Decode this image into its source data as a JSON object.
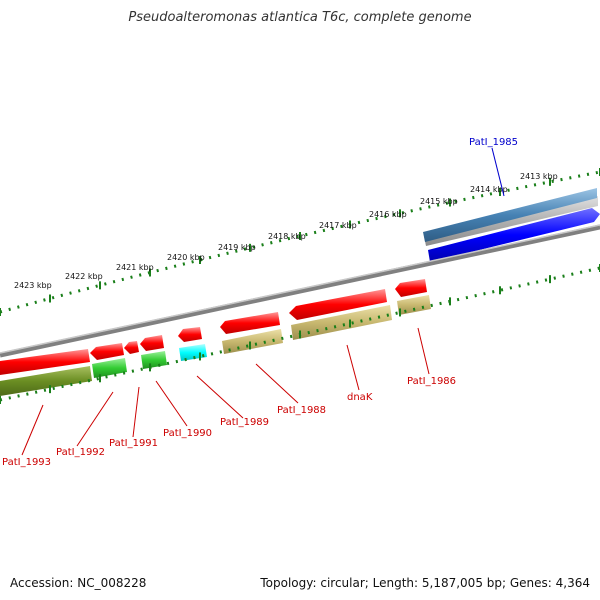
{
  "title": "Pseudoalteromonas atlantica T6c, complete genome",
  "accession": "Accession: NC_008228",
  "summary": "Topology: circular; Length: 5,187,005 bp; Genes: 4,364",
  "colors": {
    "cds": "#ff0000",
    "olive_feature": "#c8b870",
    "dark_olive_feature": "#6b8e23",
    "green_feature": "#33cc33",
    "cyan_feature": "#00ffff",
    "blue_feature": "#0000ff",
    "steelblue_feature": "#4682b4",
    "tick": "#1a7f1a",
    "backbone": "#808080",
    "label_red": "#cc0000",
    "label_blue": "#0000cc"
  },
  "scale_labels": [
    "2413 kbp",
    "2414 kbp",
    "2415 kbp",
    "2416 kbp",
    "2417 kbp",
    "2418 kbp",
    "2419 kbp",
    "2420 kbp",
    "2421 kbp",
    "2422 kbp",
    "2423 kbp"
  ],
  "gene_labels": [
    {
      "id": "patl-1985",
      "text": "PatI_1985",
      "color": "blue"
    },
    {
      "id": "patl-1986",
      "text": "PatI_1986",
      "color": "red"
    },
    {
      "id": "dnak",
      "text": "dnaK",
      "color": "red"
    },
    {
      "id": "patl-1988",
      "text": "PatI_1988",
      "color": "red"
    },
    {
      "id": "patl-1989",
      "text": "PatI_1989",
      "color": "red"
    },
    {
      "id": "patl-1990",
      "text": "PatI_1990",
      "color": "red"
    },
    {
      "id": "patl-1991",
      "text": "PatI_1991",
      "color": "red"
    },
    {
      "id": "patl-1992",
      "text": "PatI_1992",
      "color": "red"
    },
    {
      "id": "patl-1993",
      "text": "PatI_1993",
      "color": "red"
    }
  ]
}
